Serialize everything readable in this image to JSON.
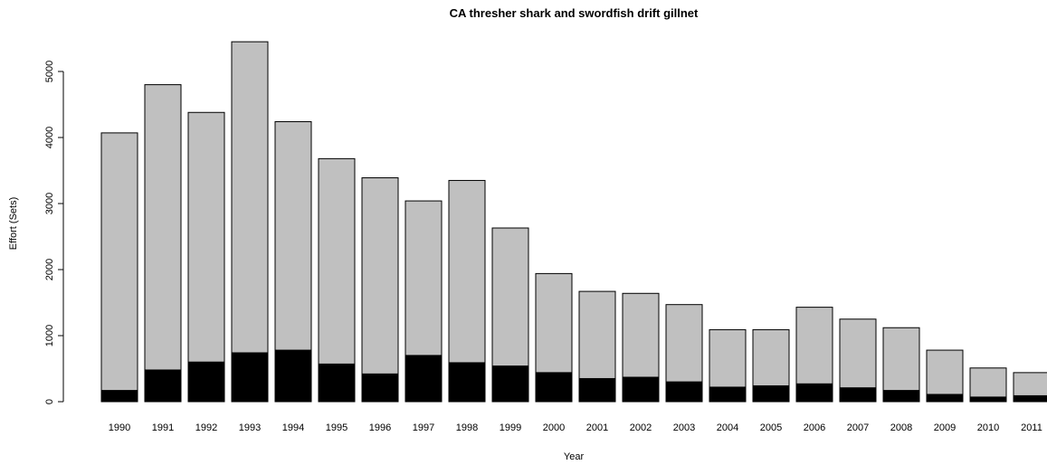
{
  "chart_data": {
    "type": "bar",
    "stacked": true,
    "title": "CA thresher shark and swordfish drift gillnet",
    "xlabel": "Year",
    "ylabel": "Effort (Sets)",
    "ylim": [
      0,
      5500
    ],
    "yticks": [
      0,
      1000,
      2000,
      3000,
      4000,
      5000
    ],
    "grid": false,
    "legend": "none",
    "categories": [
      "1990",
      "1991",
      "1992",
      "1993",
      "1994",
      "1995",
      "1996",
      "1997",
      "1998",
      "1999",
      "2000",
      "2001",
      "2002",
      "2003",
      "2004",
      "2005",
      "2006",
      "2007",
      "2008",
      "2009",
      "2010",
      "2011"
    ],
    "series": [
      {
        "values": [
          170,
          480,
          600,
          740,
          780,
          570,
          420,
          700,
          590,
          540,
          440,
          350,
          370,
          300,
          220,
          240,
          270,
          210,
          170,
          110,
          70,
          90
        ],
        "color": "#000000"
      },
      {
        "values": [
          3900,
          4320,
          3780,
          4710,
          3460,
          3110,
          2970,
          2340,
          2760,
          2090,
          1500,
          1320,
          1270,
          1170,
          870,
          850,
          1160,
          1040,
          950,
          670,
          440,
          350
        ],
        "color": "#c0c0c0"
      }
    ]
  }
}
